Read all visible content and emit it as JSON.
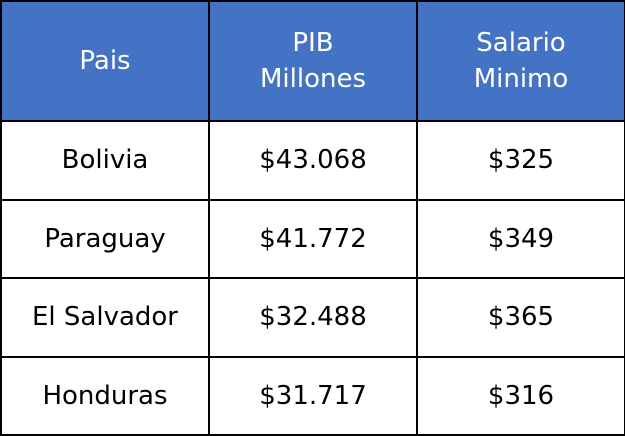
{
  "table": {
    "headers": [
      "Pais",
      "PIB Millones",
      "Salario Minimo"
    ],
    "rows": [
      [
        "Bolivia",
        "$43.068",
        "$325"
      ],
      [
        "Paraguay",
        "$41.772",
        "$349"
      ],
      [
        "El Salvador",
        "$32.488",
        "$365"
      ],
      [
        "Honduras",
        "$31.717",
        "$316"
      ]
    ]
  }
}
